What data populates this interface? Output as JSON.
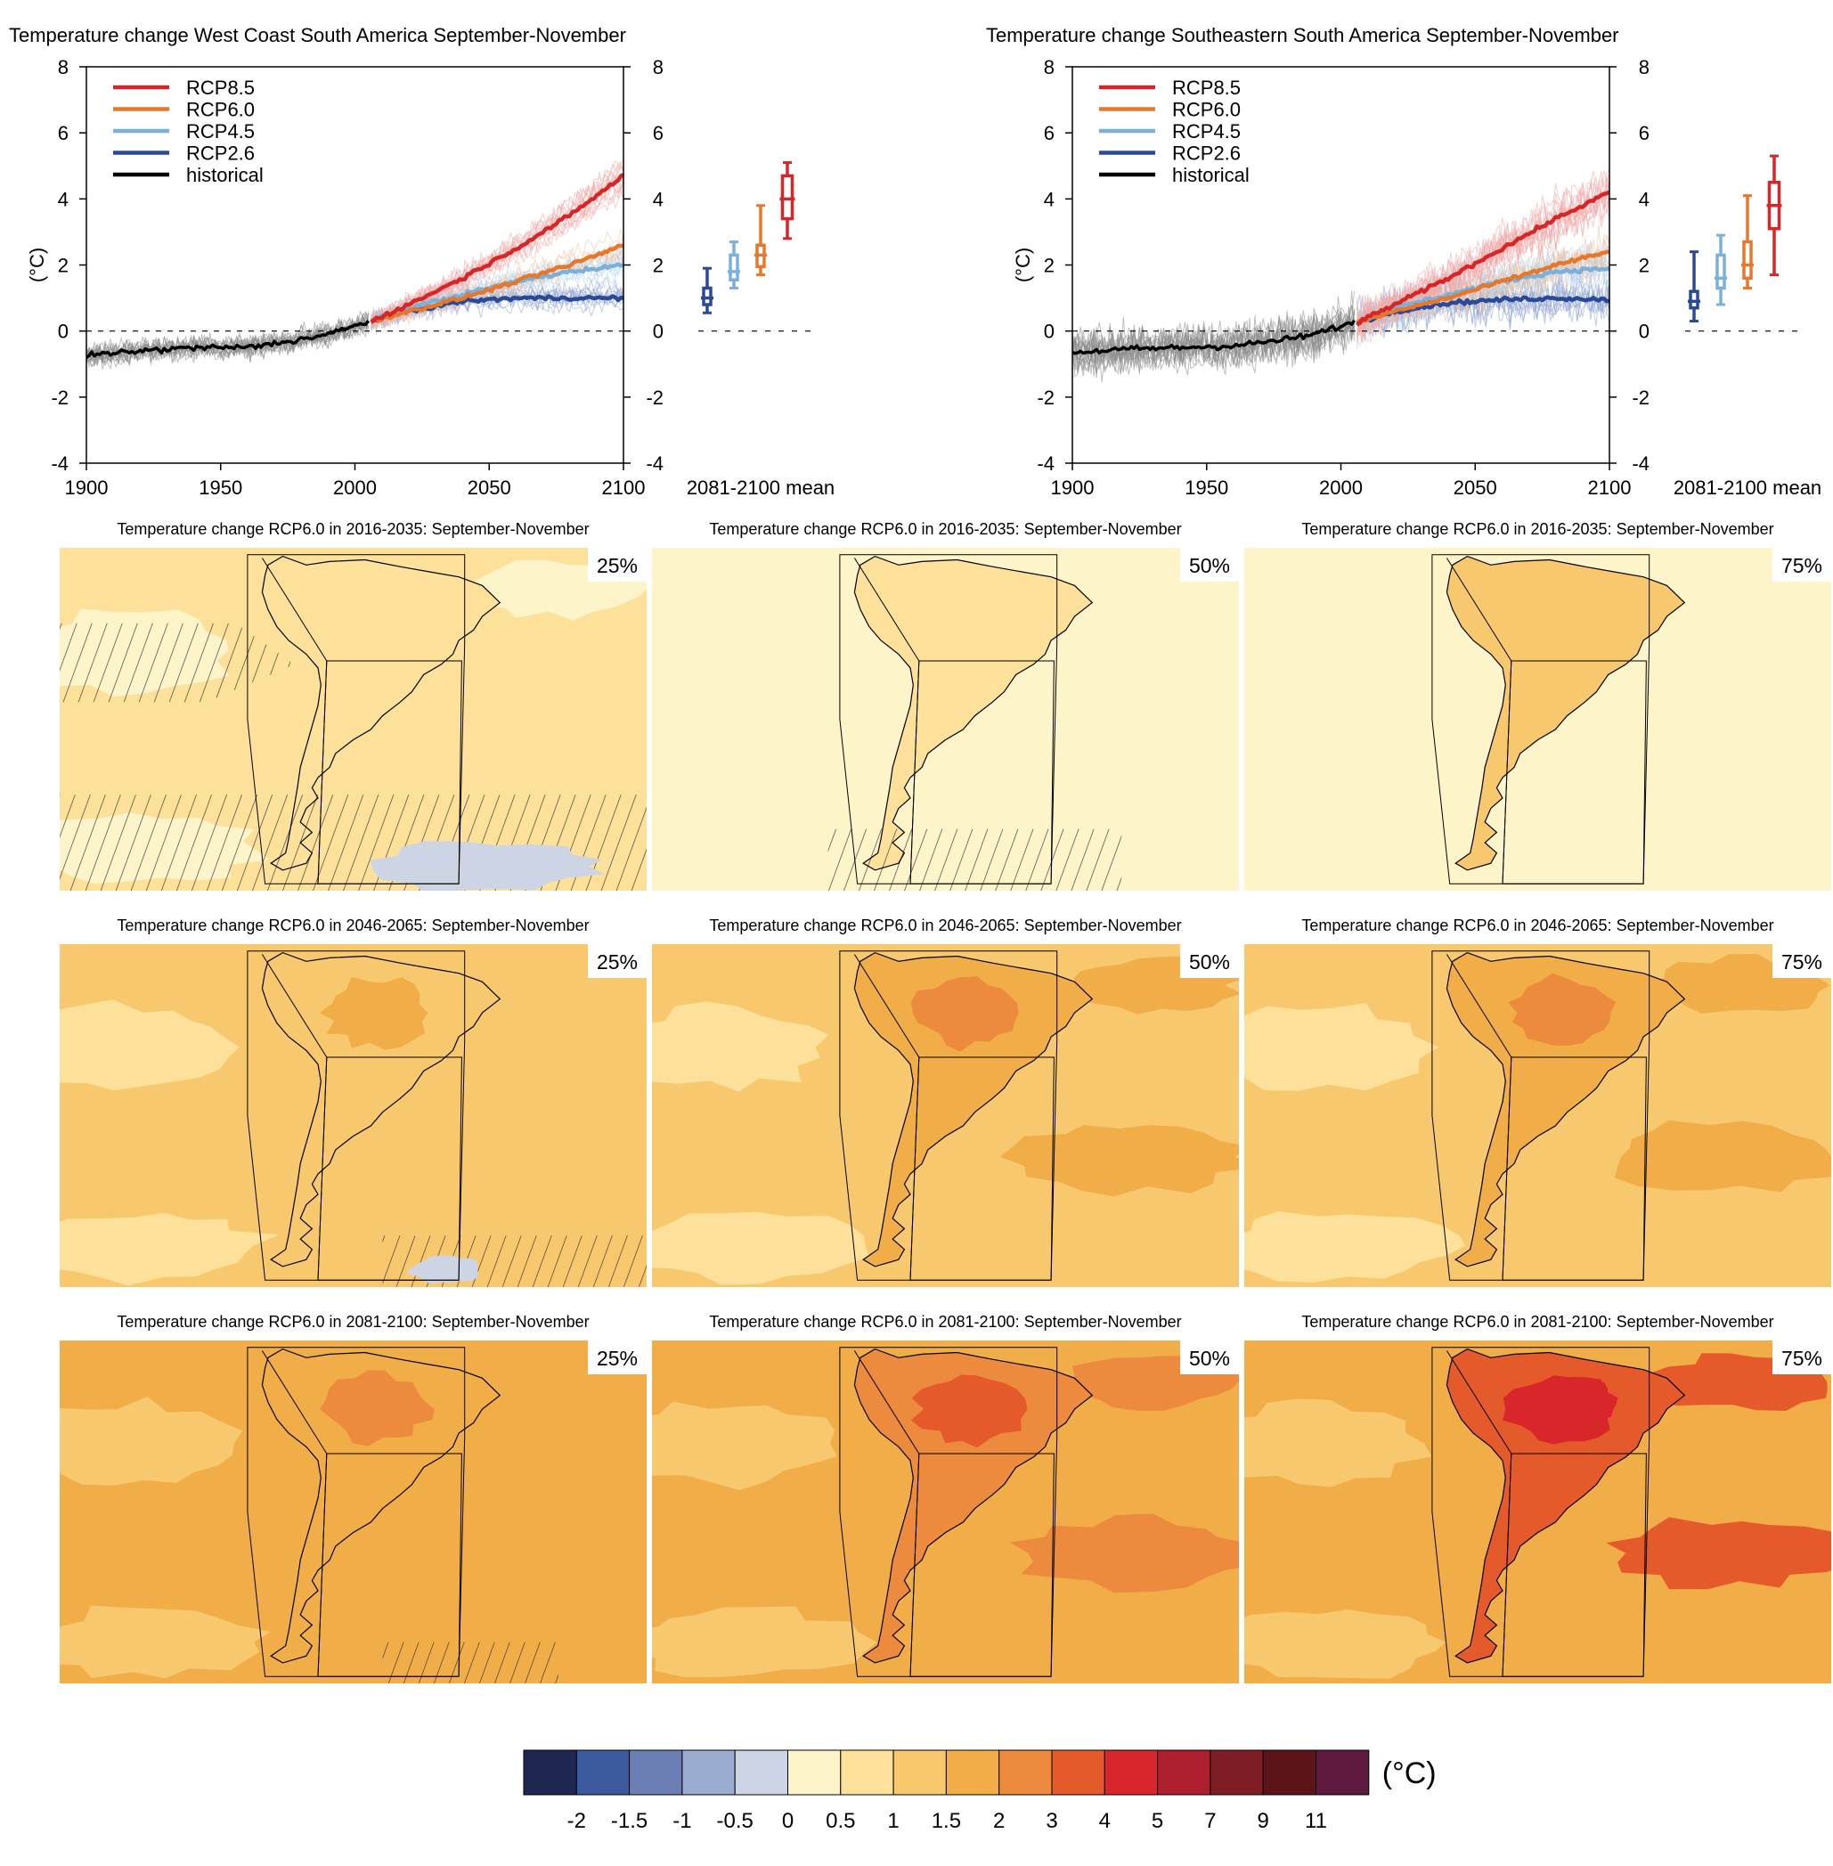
{
  "colors": {
    "rcp85": "#d62728",
    "rcp60": "#e6782e",
    "rcp45": "#7ab0d9",
    "rcp26": "#2b4a95",
    "historical": "#000000",
    "historical_spread": "#8a8a8a",
    "hatch": "#333333"
  },
  "legend": [
    "RCP8.5",
    "RCP6.0",
    "RCP4.5",
    "RCP2.6",
    "historical"
  ],
  "units_label": "(°C)",
  "boxplot_label": "2081-2100 mean",
  "chart_data": [
    {
      "type": "line",
      "title": "Temperature change West Coast South America September-November",
      "ylabel": "(°C)",
      "xlim": [
        1900,
        2100
      ],
      "ylim": [
        -4,
        8
      ],
      "x_ticks": [
        "1900",
        "1950",
        "2000",
        "2050",
        "2100"
      ],
      "y_ticks": [
        "-4",
        "-2",
        "0",
        "2",
        "4",
        "6",
        "8"
      ],
      "series": [
        {
          "name": "historical",
          "x": [
            1900,
            1920,
            1940,
            1960,
            1980,
            1990,
            2000,
            2005
          ],
          "values": [
            -0.75,
            -0.6,
            -0.5,
            -0.5,
            -0.25,
            -0.1,
            0.15,
            0.3
          ]
        },
        {
          "name": "RCP8.5",
          "x": [
            2006,
            2020,
            2040,
            2060,
            2080,
            2100
          ],
          "values": [
            0.3,
            0.8,
            1.6,
            2.5,
            3.5,
            4.7
          ]
        },
        {
          "name": "RCP6.0",
          "x": [
            2006,
            2020,
            2040,
            2060,
            2080,
            2100
          ],
          "values": [
            0.3,
            0.6,
            1.0,
            1.5,
            2.0,
            2.6
          ]
        },
        {
          "name": "RCP4.5",
          "x": [
            2006,
            2020,
            2040,
            2060,
            2080,
            2100
          ],
          "values": [
            0.3,
            0.7,
            1.1,
            1.5,
            1.8,
            2.0
          ]
        },
        {
          "name": "RCP2.6",
          "x": [
            2006,
            2020,
            2040,
            2060,
            2080,
            2100
          ],
          "values": [
            0.3,
            0.6,
            0.9,
            1.0,
            1.0,
            1.0
          ]
        }
      ],
      "boxplots": [
        {
          "name": "RCP2.6",
          "min": 0.55,
          "q1": 0.8,
          "median": 1.0,
          "q3": 1.3,
          "max": 1.9
        },
        {
          "name": "RCP4.5",
          "min": 1.3,
          "q1": 1.55,
          "median": 1.8,
          "q3": 2.3,
          "max": 2.7
        },
        {
          "name": "RCP6.0",
          "min": 1.7,
          "q1": 1.95,
          "median": 2.3,
          "q3": 2.6,
          "max": 3.8
        },
        {
          "name": "RCP8.5",
          "min": 2.8,
          "q1": 3.4,
          "median": 4.0,
          "q3": 4.7,
          "max": 5.1
        }
      ]
    },
    {
      "type": "line",
      "title": "Temperature change Southeastern South America September-November",
      "ylabel": "(°C)",
      "xlim": [
        1900,
        2100
      ],
      "ylim": [
        -4,
        8
      ],
      "x_ticks": [
        "1900",
        "1950",
        "2000",
        "2050",
        "2100"
      ],
      "y_ticks": [
        "-4",
        "-2",
        "0",
        "2",
        "4",
        "6",
        "8"
      ],
      "series": [
        {
          "name": "historical",
          "x": [
            1900,
            1920,
            1940,
            1960,
            1980,
            1990,
            2000,
            2005
          ],
          "values": [
            -0.65,
            -0.55,
            -0.5,
            -0.45,
            -0.25,
            -0.1,
            0.15,
            0.25
          ]
        },
        {
          "name": "RCP8.5",
          "x": [
            2006,
            2020,
            2040,
            2060,
            2080,
            2100
          ],
          "values": [
            0.25,
            0.8,
            1.6,
            2.5,
            3.4,
            4.2
          ]
        },
        {
          "name": "RCP6.0",
          "x": [
            2006,
            2020,
            2040,
            2060,
            2080,
            2100
          ],
          "values": [
            0.25,
            0.6,
            1.0,
            1.5,
            2.0,
            2.4
          ]
        },
        {
          "name": "RCP4.5",
          "x": [
            2006,
            2020,
            2040,
            2060,
            2080,
            2100
          ],
          "values": [
            0.25,
            0.7,
            1.1,
            1.5,
            1.8,
            1.9
          ]
        },
        {
          "name": "RCP2.6",
          "x": [
            2006,
            2020,
            2040,
            2060,
            2080,
            2100
          ],
          "values": [
            0.25,
            0.6,
            0.85,
            0.95,
            1.0,
            0.95
          ]
        }
      ],
      "boxplots": [
        {
          "name": "RCP2.6",
          "min": 0.3,
          "q1": 0.7,
          "median": 0.9,
          "q3": 1.2,
          "max": 2.4
        },
        {
          "name": "RCP4.5",
          "min": 0.8,
          "q1": 1.3,
          "median": 1.6,
          "q3": 2.3,
          "max": 2.9
        },
        {
          "name": "RCP6.0",
          "min": 1.3,
          "q1": 1.6,
          "median": 2.0,
          "q3": 2.7,
          "max": 4.1
        },
        {
          "name": "RCP8.5",
          "min": 1.7,
          "q1": 3.1,
          "median": 3.8,
          "q3": 4.5,
          "max": 5.3
        }
      ]
    },
    {
      "type": "heatmap",
      "rows": [
        {
          "title": "Temperature change RCP6.0 in 2016-2035: September-November",
          "period": "2016-2035"
        },
        {
          "title": "Temperature change RCP6.0 in 2046-2065: September-November",
          "period": "2046-2065"
        },
        {
          "title": "Temperature change RCP6.0 in 2081-2100: September-November",
          "period": "2081-2100"
        }
      ],
      "percentiles": [
        "25%",
        "50%",
        "75%"
      ],
      "category_levels": [
        [
          [
            1,
            0,
            0
          ],
          [
            1,
            1,
            2
          ]
        ],
        [
          [
            2,
            2,
            2
          ],
          [
            2,
            3,
            3
          ]
        ],
        [
          [
            3,
            3,
            3
          ],
          [
            3,
            4,
            5
          ]
        ]
      ],
      "colorbar": {
        "labels": [
          "-2",
          "-1.5",
          "-1",
          "-0.5",
          "0",
          "0.5",
          "1",
          "1.5",
          "2",
          "3",
          "4",
          "5",
          "7",
          "9",
          "11"
        ],
        "colors": [
          "#1f2651",
          "#3d5a9e",
          "#6b7fb5",
          "#9aaccf",
          "#cdd4e4",
          "#fdf4c9",
          "#fde19a",
          "#f8c86e",
          "#f1ae48",
          "#ec8a3d",
          "#e55a2b",
          "#d9262a",
          "#ae1f2d",
          "#7e1e24",
          "#5c1418",
          "#5e1a3e"
        ],
        "unit": "(°C)"
      }
    }
  ]
}
